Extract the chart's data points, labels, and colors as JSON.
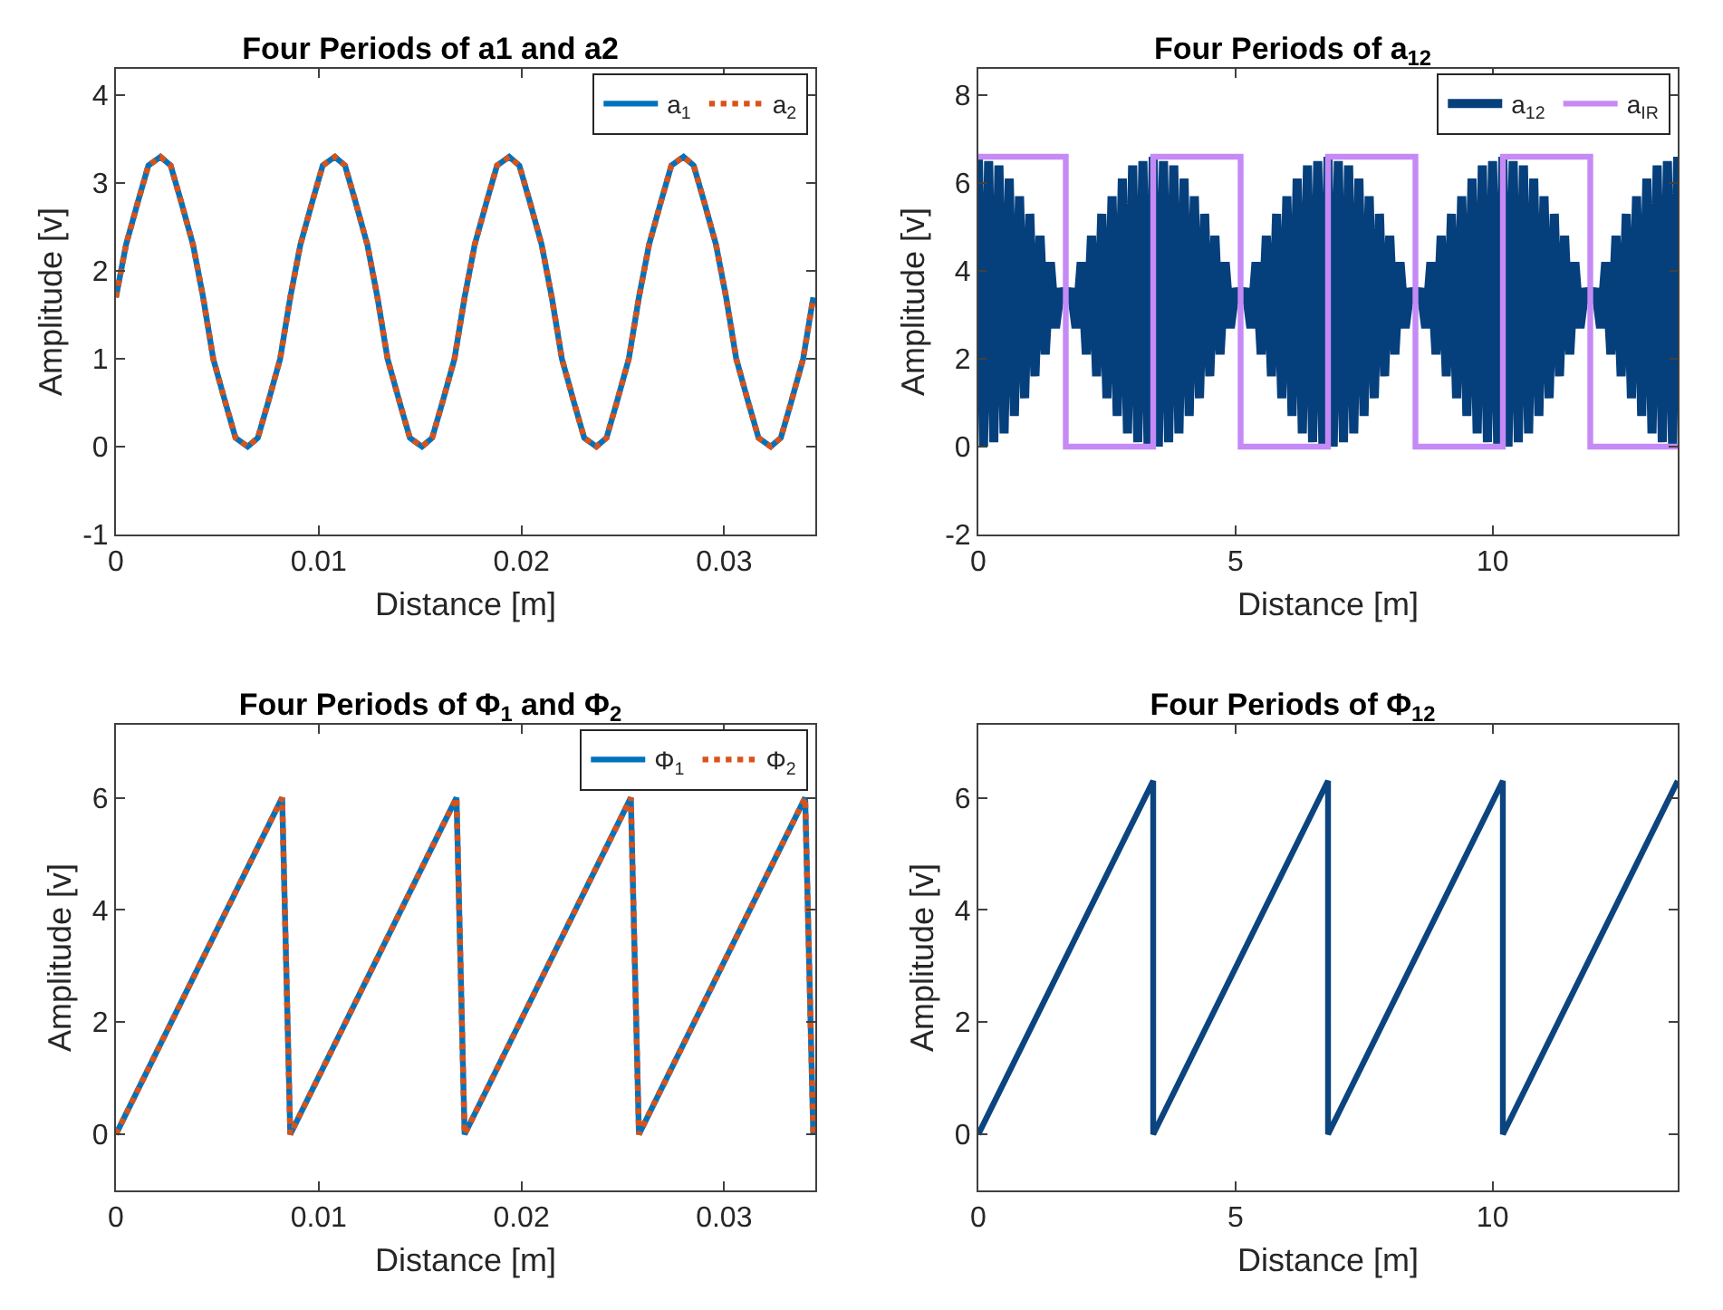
{
  "chart_data": [
    {
      "type": "line",
      "title": "Four Periods of a1 and a2",
      "xlabel": "Distance [m]",
      "ylabel": "Amplitude [v]",
      "legend": "top right",
      "xlim": [
        0,
        0.0345
      ],
      "xticks": [
        0,
        0.01,
        0.02,
        0.03
      ],
      "ylim": [
        -1,
        4.3
      ],
      "yticks": [
        -1,
        0,
        1,
        2,
        3,
        4
      ],
      "x": [
        0,
        0.0005,
        0.0011,
        0.0016,
        0.0022,
        0.0027,
        0.0032,
        0.0038,
        0.0043,
        0.0048,
        0.0054,
        0.0059,
        0.0065,
        0.007,
        0.0075,
        0.0081,
        0.0086,
        0.0091,
        0.0097,
        0.0102,
        0.0108,
        0.0113,
        0.0118,
        0.0124,
        0.0129,
        0.0134,
        0.014,
        0.0145,
        0.0151,
        0.0156,
        0.0161,
        0.0167,
        0.0172,
        0.0177,
        0.0183,
        0.0188,
        0.0194,
        0.0199,
        0.0204,
        0.021,
        0.0215,
        0.022,
        0.0226,
        0.0231,
        0.0237,
        0.0242,
        0.0247,
        0.0253,
        0.0258,
        0.0263,
        0.0269,
        0.0274,
        0.028,
        0.0285,
        0.029,
        0.0296,
        0.0301,
        0.0306,
        0.0312,
        0.0317,
        0.0323,
        0.0328,
        0.0333,
        0.0339,
        0.0344
      ],
      "series": [
        {
          "name": "a$_{1}$",
          "color": "#0072bd",
          "line_style": "solid",
          "values": [
            1.7,
            2.3,
            2.8,
            3.2,
            3.3,
            3.2,
            2.8,
            2.3,
            1.7,
            1.0,
            0.5,
            0.1,
            0,
            0.1,
            0.5,
            1.0,
            1.7,
            2.3,
            2.8,
            3.2,
            3.3,
            3.2,
            2.8,
            2.3,
            1.7,
            1.0,
            0.5,
            0.1,
            0,
            0.1,
            0.5,
            1.0,
            1.7,
            2.3,
            2.8,
            3.2,
            3.3,
            3.2,
            2.8,
            2.3,
            1.7,
            1.0,
            0.5,
            0.1,
            0,
            0.1,
            0.5,
            1.0,
            1.7,
            2.3,
            2.8,
            3.2,
            3.3,
            3.2,
            2.8,
            2.3,
            1.7,
            1.0,
            0.5,
            0.1,
            0,
            0.1,
            0.5,
            1.0,
            1.7
          ]
        },
        {
          "name": "a$_{2}$",
          "color": "#d95319",
          "line_style": "dotted",
          "values": [
            1.7,
            2.3,
            2.8,
            3.2,
            3.3,
            3.2,
            2.8,
            2.3,
            1.7,
            1.0,
            0.5,
            0.1,
            0,
            0.1,
            0.5,
            1.0,
            1.7,
            2.3,
            2.8,
            3.2,
            3.3,
            3.2,
            2.8,
            2.3,
            1.7,
            1.0,
            0.5,
            0.1,
            0,
            0.1,
            0.5,
            1.0,
            1.7,
            2.3,
            2.8,
            3.2,
            3.3,
            3.2,
            2.8,
            2.3,
            1.7,
            1.0,
            0.5,
            0.1,
            0,
            0.1,
            0.5,
            1.0,
            1.7,
            2.3,
            2.8,
            3.2,
            3.3,
            3.2,
            2.8,
            2.3,
            1.7,
            1.0,
            0.5,
            0.1,
            0,
            0.1,
            0.5,
            1.0,
            1.7
          ]
        }
      ]
    },
    {
      "type": "line",
      "title": "Four Periods of a$_{12}$",
      "xlabel": "Distance [m]",
      "ylabel": "Amplitude [v]",
      "legend": "top right",
      "xlim": [
        0,
        13.6
      ],
      "xticks": [
        0,
        5,
        10
      ],
      "ylim": [
        -2,
        8.6
      ],
      "yticks": [
        -2,
        0,
        2,
        4,
        6,
        8
      ],
      "series": [
        {
          "name": "a$_{12}$",
          "color": "#053f7c",
          "line_style": "solid",
          "x": [
            0,
            0.1,
            0.2,
            0.3,
            0.4,
            0.5,
            0.6,
            0.7,
            0.8,
            0.9,
            1,
            1.1,
            1.2,
            1.3,
            1.4,
            1.5,
            1.6,
            1.7,
            1.8,
            1.9,
            2,
            2.1,
            2.2,
            2.3,
            2.4,
            2.5,
            2.6,
            2.7,
            2.8,
            2.9,
            3,
            3.1,
            3.2,
            3.3,
            3.4,
            3.5,
            3.6,
            3.7,
            3.8,
            3.9,
            4,
            4.1,
            4.2,
            4.3,
            4.4,
            4.5,
            4.6,
            4.7,
            4.8,
            4.9,
            5,
            5.1,
            5.2,
            5.3,
            5.4,
            5.5,
            5.6,
            5.7,
            5.8,
            5.9,
            6,
            6.1,
            6.2,
            6.3,
            6.4,
            6.5,
            6.6,
            6.7,
            6.8,
            6.9,
            7,
            7.1,
            7.2,
            7.3,
            7.4,
            7.5,
            7.6,
            7.7,
            7.8,
            7.9,
            8,
            8.1,
            8.2,
            8.3,
            8.4,
            8.5,
            8.6,
            8.7,
            8.8,
            8.9,
            9,
            9.1,
            9.2,
            9.3,
            9.4,
            9.5,
            9.6,
            9.7,
            9.8,
            9.9,
            10,
            10.1,
            10.2,
            10.3,
            10.4,
            10.5,
            10.6,
            10.7,
            10.8,
            10.9,
            11,
            11.1,
            11.2,
            11.3,
            11.4,
            11.5,
            11.6,
            11.7,
            11.8,
            11.9,
            12,
            12.1,
            12.2,
            12.3,
            12.4,
            12.5,
            12.6,
            12.7,
            12.8,
            12.9,
            13,
            13.1,
            13.2,
            13.3,
            13.4,
            13.5,
            13.6
          ],
          "values": [
            6.6,
            0.0,
            6.5,
            0.1,
            6.4,
            0.3,
            6.1,
            0.7,
            5.7,
            1.1,
            5.3,
            1.6,
            4.8,
            2.1,
            4.2,
            2.7,
            3.6,
            3.3,
            3.6,
            2.7,
            4.2,
            2.1,
            4.8,
            1.6,
            5.3,
            1.1,
            5.7,
            0.7,
            6.1,
            0.3,
            6.4,
            0.1,
            6.5,
            0.0,
            6.6,
            0.0,
            6.5,
            0.1,
            6.4,
            0.3,
            6.1,
            0.7,
            5.7,
            1.1,
            5.3,
            1.6,
            4.8,
            2.1,
            4.2,
            2.7,
            3.6,
            3.3,
            3.6,
            2.7,
            4.2,
            2.1,
            4.8,
            1.6,
            5.3,
            1.1,
            5.7,
            0.7,
            6.1,
            0.3,
            6.4,
            0.1,
            6.5,
            0.0,
            6.6,
            0.0,
            6.5,
            0.1,
            6.4,
            0.3,
            6.1,
            0.7,
            5.7,
            1.1,
            5.3,
            1.6,
            4.8,
            2.1,
            4.2,
            2.7,
            3.6,
            3.3,
            3.6,
            2.7,
            4.2,
            2.1,
            4.8,
            1.6,
            5.3,
            1.1,
            5.7,
            0.7,
            6.1,
            0.3,
            6.4,
            0.1,
            6.5,
            0.0,
            6.6,
            0.0,
            6.5,
            0.1,
            6.4,
            0.3,
            6.1,
            0.7,
            5.7,
            1.1,
            5.3,
            1.6,
            4.8,
            2.1,
            4.2,
            2.7,
            3.6,
            3.3,
            3.6,
            2.7,
            4.2,
            2.1,
            4.8,
            1.6,
            5.3,
            1.1,
            5.7,
            0.7,
            6.1,
            0.3,
            6.4,
            0.1,
            6.5,
            0.0,
            6.6
          ]
        },
        {
          "name": "a$_{IR}$",
          "color": "#c58af5",
          "line_style": "solid",
          "x": [
            0,
            1.7,
            1.7,
            3.4,
            3.4,
            5.1,
            5.1,
            6.8,
            6.8,
            8.5,
            8.5,
            10.2,
            10.2,
            11.9,
            11.9,
            13.6
          ],
          "values": [
            6.6,
            6.6,
            0,
            0,
            6.6,
            6.6,
            0,
            0,
            6.6,
            6.6,
            0,
            0,
            6.6,
            6.6,
            0,
            0
          ]
        }
      ]
    },
    {
      "type": "line",
      "title": "Four Periods of Φ$_{1}$ and Φ$_{2}$",
      "xlabel": "Distance [m]",
      "ylabel": "Amplitude [v]",
      "legend": "top right",
      "xlim": [
        0,
        0.0345
      ],
      "xticks": [
        0,
        0.01,
        0.02,
        0.03
      ],
      "ylim": [
        -1,
        7.3
      ],
      "yticks": [
        0,
        2,
        4,
        6
      ],
      "x": [
        0,
        0.0082,
        0.0086,
        0.0168,
        0.0172,
        0.0254,
        0.0258,
        0.034,
        0.0344
      ],
      "series": [
        {
          "name": "Φ$_{1}$",
          "color": "#0072bd",
          "line_style": "solid",
          "values": [
            0,
            6.0,
            0,
            6.0,
            0,
            6.0,
            0,
            6.0,
            0
          ]
        },
        {
          "name": "Φ$_{2}$",
          "color": "#d95319",
          "line_style": "dotted",
          "values": [
            0,
            6.0,
            0,
            6.0,
            0,
            6.0,
            0,
            6.0,
            0
          ]
        }
      ]
    },
    {
      "type": "line",
      "title": "Four Periods of Φ$_{12}$",
      "xlabel": "Distance [m]",
      "ylabel": "Amplitude [v]",
      "xlim": [
        0,
        13.6
      ],
      "xticks": [
        0,
        5,
        10
      ],
      "ylim": [
        -1,
        7.3
      ],
      "yticks": [
        0,
        2,
        4,
        6
      ],
      "x": [
        0,
        3.4,
        3.4,
        6.8,
        6.8,
        10.2,
        10.2,
        13.6
      ],
      "series": [
        {
          "color": "#0b447f",
          "line_style": "solid",
          "values": [
            0,
            6.3,
            0,
            6.3,
            0,
            6.3,
            0,
            6.3
          ]
        }
      ]
    }
  ]
}
